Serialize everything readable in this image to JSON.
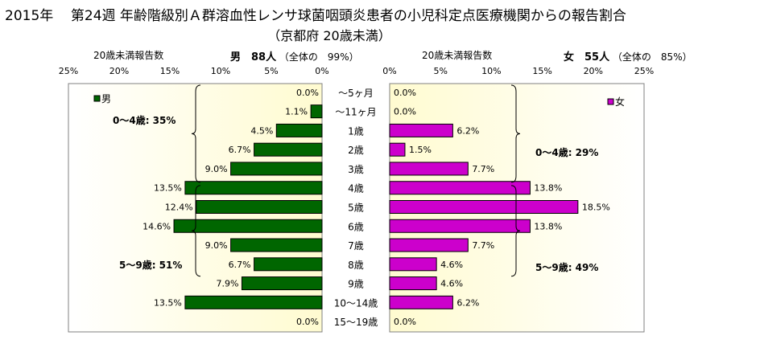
{
  "title": {
    "year": "2015年",
    "main": "第24週 年齢階級別Ａ群溶血性レンサ球菌咽頭炎患者の小児科定点医療機関からの報告割合",
    "sub": "（京都府 20歳未満）"
  },
  "headers": {
    "male_caption": "20歳未満報告数",
    "male_label": "男　88人",
    "male_total": "（全体の　99%）",
    "female_caption": "20歳未満報告数",
    "female_label": "女　55人",
    "female_total": "（全体の　85%）"
  },
  "chart_data": {
    "type": "bar",
    "orientation": "horizontal-butterfly",
    "value_unit": "%",
    "categories": [
      "～5ヶ月",
      "～11ヶ月",
      "1歳",
      "2歳",
      "3歳",
      "4歳",
      "5歳",
      "6歳",
      "7歳",
      "8歳",
      "9歳",
      "10～14歳",
      "15～19歳"
    ],
    "series": [
      {
        "name": "男",
        "side": "left",
        "color": "#006600",
        "values": [
          0.0,
          1.1,
          4.5,
          6.7,
          9.0,
          13.5,
          12.4,
          14.6,
          9.0,
          6.7,
          7.9,
          13.5,
          0.0
        ],
        "labels": [
          "0.0%",
          "1.1%",
          "4.5%",
          "6.7%",
          "9.0%",
          "13.5%",
          "12.4%",
          "14.6%",
          "9.0%",
          "6.7%",
          "7.9%",
          "13.5%",
          "0.0%"
        ]
      },
      {
        "name": "女",
        "side": "right",
        "color": "#cc00cc",
        "values": [
          0.0,
          0.0,
          6.2,
          1.5,
          7.7,
          13.8,
          18.5,
          13.8,
          7.7,
          4.6,
          4.6,
          6.2,
          0.0
        ],
        "labels": [
          "0.0%",
          "0.0%",
          "6.2%",
          "1.5%",
          "7.7%",
          "13.8%",
          "18.5%",
          "13.8%",
          "7.7%",
          "4.6%",
          "4.6%",
          "6.2%",
          "0.0%"
        ]
      }
    ],
    "xlim": [
      0,
      25
    ],
    "xticks": [
      0,
      5,
      10,
      15,
      20,
      25
    ],
    "xtick_labels": [
      "0%",
      "5%",
      "10%",
      "15%",
      "20%",
      "25%"
    ],
    "annotations": {
      "male_0_4": "0～4歳: 35%",
      "male_5_9": "5～9歳: 51%",
      "female_0_4": "0～4歳: 29%",
      "female_5_9": "5～9歳: 49%"
    },
    "legend_placement": "top-left (男), top-right (女)",
    "colors": {
      "male": "#006600",
      "female": "#cc00cc",
      "background_gradient": [
        "#fffbd0",
        "#ffffff"
      ]
    }
  }
}
